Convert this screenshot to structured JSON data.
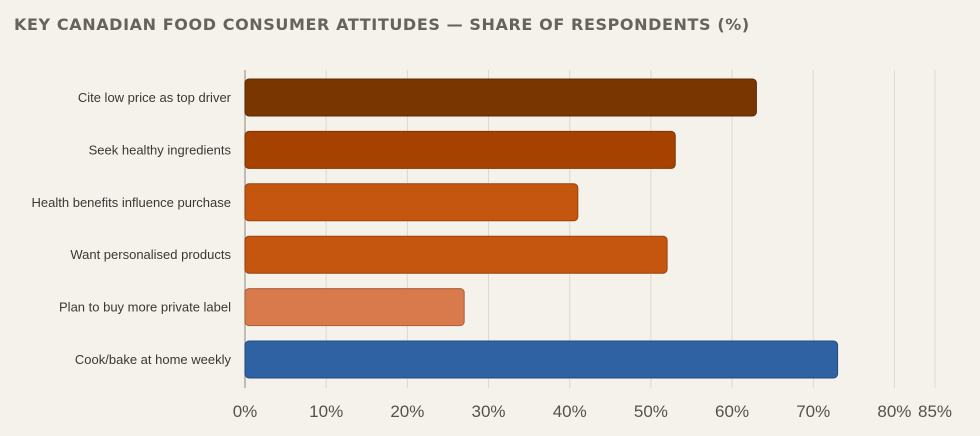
{
  "chart_data": {
    "type": "bar",
    "orientation": "horizontal",
    "title": "KEY CANADIAN FOOD CONSUMER ATTITUDES — SHARE OF RESPONDENTS (%)",
    "categories": [
      "Cite low price as top driver",
      "Seek healthy ingredients",
      "Health benefits influence purchase",
      "Want personalised products",
      "Plan to buy more private label",
      "Cook/bake at home weekly"
    ],
    "values": [
      63,
      53,
      41,
      52,
      27,
      73
    ],
    "bar_colors": [
      "#7a3600",
      "#a64200",
      "#c4560f",
      "#c4560f",
      "#d97a4c",
      "#2e62a3"
    ],
    "xlim": [
      0,
      85
    ],
    "xticks": [
      0,
      10,
      20,
      30,
      40,
      50,
      60,
      70,
      80,
      85
    ],
    "xtick_labels": [
      "0%",
      "10%",
      "20%",
      "30%",
      "40%",
      "50%",
      "60%",
      "70%",
      "80%",
      "85%"
    ],
    "grid": "vertical",
    "legend": "none",
    "xlabel": "",
    "ylabel": ""
  }
}
